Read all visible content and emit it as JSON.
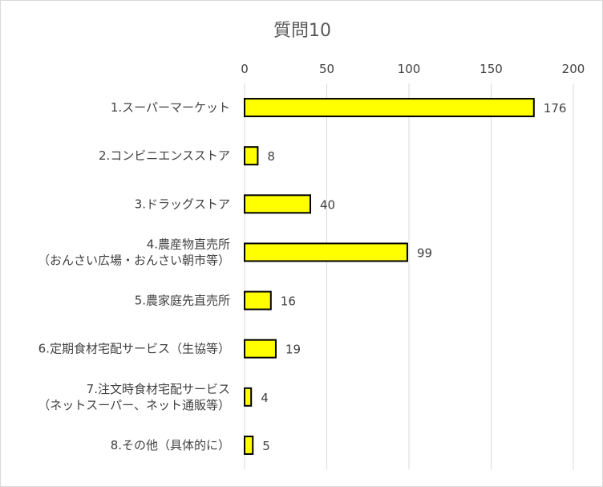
{
  "chart_data": {
    "type": "bar",
    "orientation": "horizontal",
    "title": "質問10",
    "xlim": [
      0,
      200
    ],
    "x_ticks": [
      "0",
      "50",
      "100",
      "150",
      "200"
    ],
    "x_axis_position": "top",
    "grid": true,
    "legend": "none",
    "bar_color": "#ffff00",
    "bar_edge_color": "#000000",
    "categories": [
      [
        "1.スーパーマーケット"
      ],
      [
        "2.コンビニエンスストア"
      ],
      [
        "3.ドラッグストア"
      ],
      [
        "4.農産物直売所",
        "（おんさい広場・おんさい朝市等）"
      ],
      [
        "5.農家庭先直売所"
      ],
      [
        "6.定期食材宅配サービス（生協等）"
      ],
      [
        "7.注文時食材宅配サービス",
        "（ネットスーパー、ネット通販等）"
      ],
      [
        "8.その他（具体的に）"
      ]
    ],
    "values": [
      176,
      8,
      40,
      99,
      16,
      19,
      4,
      5
    ],
    "data_labels": [
      "176",
      "8",
      "40",
      "99",
      "16",
      "19",
      "4",
      "5"
    ]
  }
}
